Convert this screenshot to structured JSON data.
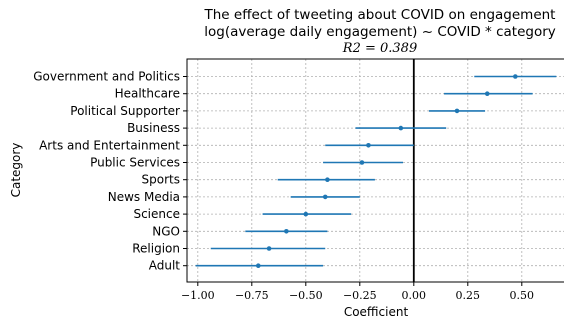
{
  "chart_data": {
    "type": "errorbar",
    "title_lines": [
      "The effect of tweeting about COVID on engagement",
      "log(average daily engagement) ~ COVID * category",
      "R2 = 0.389"
    ],
    "xlabel": "Coefficient",
    "ylabel": "Category",
    "xlim": [
      -1.05,
      0.7
    ],
    "xticks": [
      -1.0,
      -0.75,
      -0.5,
      -0.25,
      0.0,
      0.25,
      0.5
    ],
    "xtick_labels": [
      "−1.00",
      "−0.75",
      "−0.50",
      "−0.25",
      "0.00",
      "0.25",
      "0.50"
    ],
    "reference_line_x": 0.0,
    "grid": true,
    "color": "#1f77b4",
    "categories": [
      "Government and Politics",
      "Healthcare",
      "Political Supporter",
      "Business",
      "Arts and Entertainment",
      "Public Services",
      "Sports",
      "News Media",
      "Science",
      "NGO",
      "Religion",
      "Adult"
    ],
    "estimates": [
      0.47,
      0.34,
      0.2,
      -0.06,
      -0.21,
      -0.24,
      -0.4,
      -0.41,
      -0.5,
      -0.59,
      -0.67,
      -0.72
    ],
    "ci_low": [
      0.28,
      0.14,
      0.07,
      -0.27,
      -0.41,
      -0.42,
      -0.63,
      -0.57,
      -0.7,
      -0.78,
      -0.94,
      -1.01
    ],
    "ci_high": [
      0.66,
      0.55,
      0.33,
      0.15,
      0.0,
      -0.05,
      -0.18,
      -0.25,
      -0.29,
      -0.4,
      -0.41,
      -0.42
    ]
  }
}
